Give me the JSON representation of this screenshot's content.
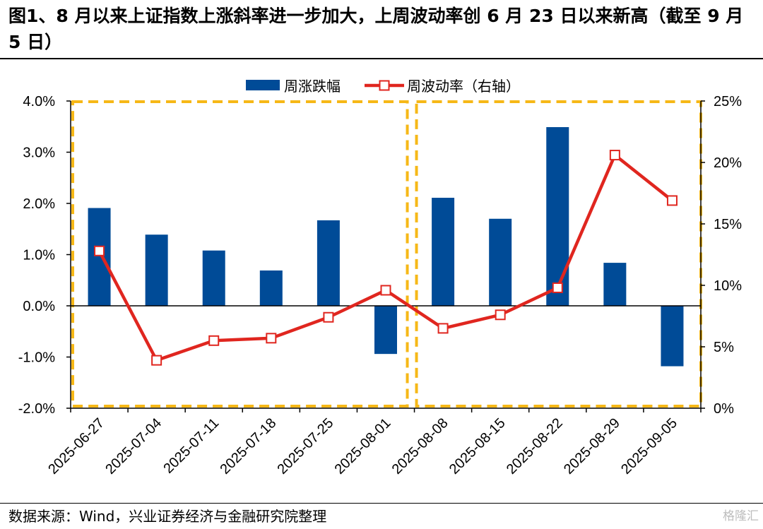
{
  "title": "图1、8 月以来上证指数上涨斜率进一步加大，上周波动率创 6 月 23 日以来新高（截至 9 月 5 日）",
  "source": "数据来源：Wind，兴业证券经济与金融研究院整理",
  "watermark": "格隆汇",
  "colors": {
    "bar": "#004B97",
    "line": "#E0261F",
    "highlight_box": "#F6B817",
    "axis": "#000000"
  },
  "chart_data": {
    "type": "bar",
    "categories": [
      "2025-06-27",
      "2025-07-04",
      "2025-07-11",
      "2025-07-18",
      "2025-07-25",
      "2025-08-01",
      "2025-08-08",
      "2025-08-15",
      "2025-08-22",
      "2025-08-29",
      "2025-09-05"
    ],
    "series": [
      {
        "name": "周涨跌幅",
        "type": "bar",
        "axis": "left",
        "values": [
          1.91,
          1.39,
          1.08,
          0.69,
          1.67,
          -0.94,
          2.11,
          1.7,
          3.49,
          0.84,
          -1.18
        ]
      },
      {
        "name": "周波动率（右轴）",
        "type": "line",
        "axis": "right",
        "values": [
          12.8,
          3.9,
          5.5,
          5.7,
          7.4,
          9.6,
          6.5,
          7.6,
          9.8,
          20.6,
          16.9
        ]
      }
    ],
    "y_left": {
      "min": -2.0,
      "max": 4.0,
      "ticks": [
        "-2.0%",
        "-1.0%",
        "0.0%",
        "1.0%",
        "2.0%",
        "3.0%",
        "4.0%"
      ]
    },
    "y_right": {
      "min": 0,
      "max": 25,
      "ticks": [
        "0%",
        "5%",
        "10%",
        "15%",
        "20%",
        "25%"
      ]
    },
    "grid": false,
    "legend_position": "top-center",
    "highlight_boxes": [
      {
        "from": "2025-06-27",
        "to": "2025-08-01"
      },
      {
        "from": "2025-08-08",
        "to": "2025-09-05"
      }
    ]
  }
}
